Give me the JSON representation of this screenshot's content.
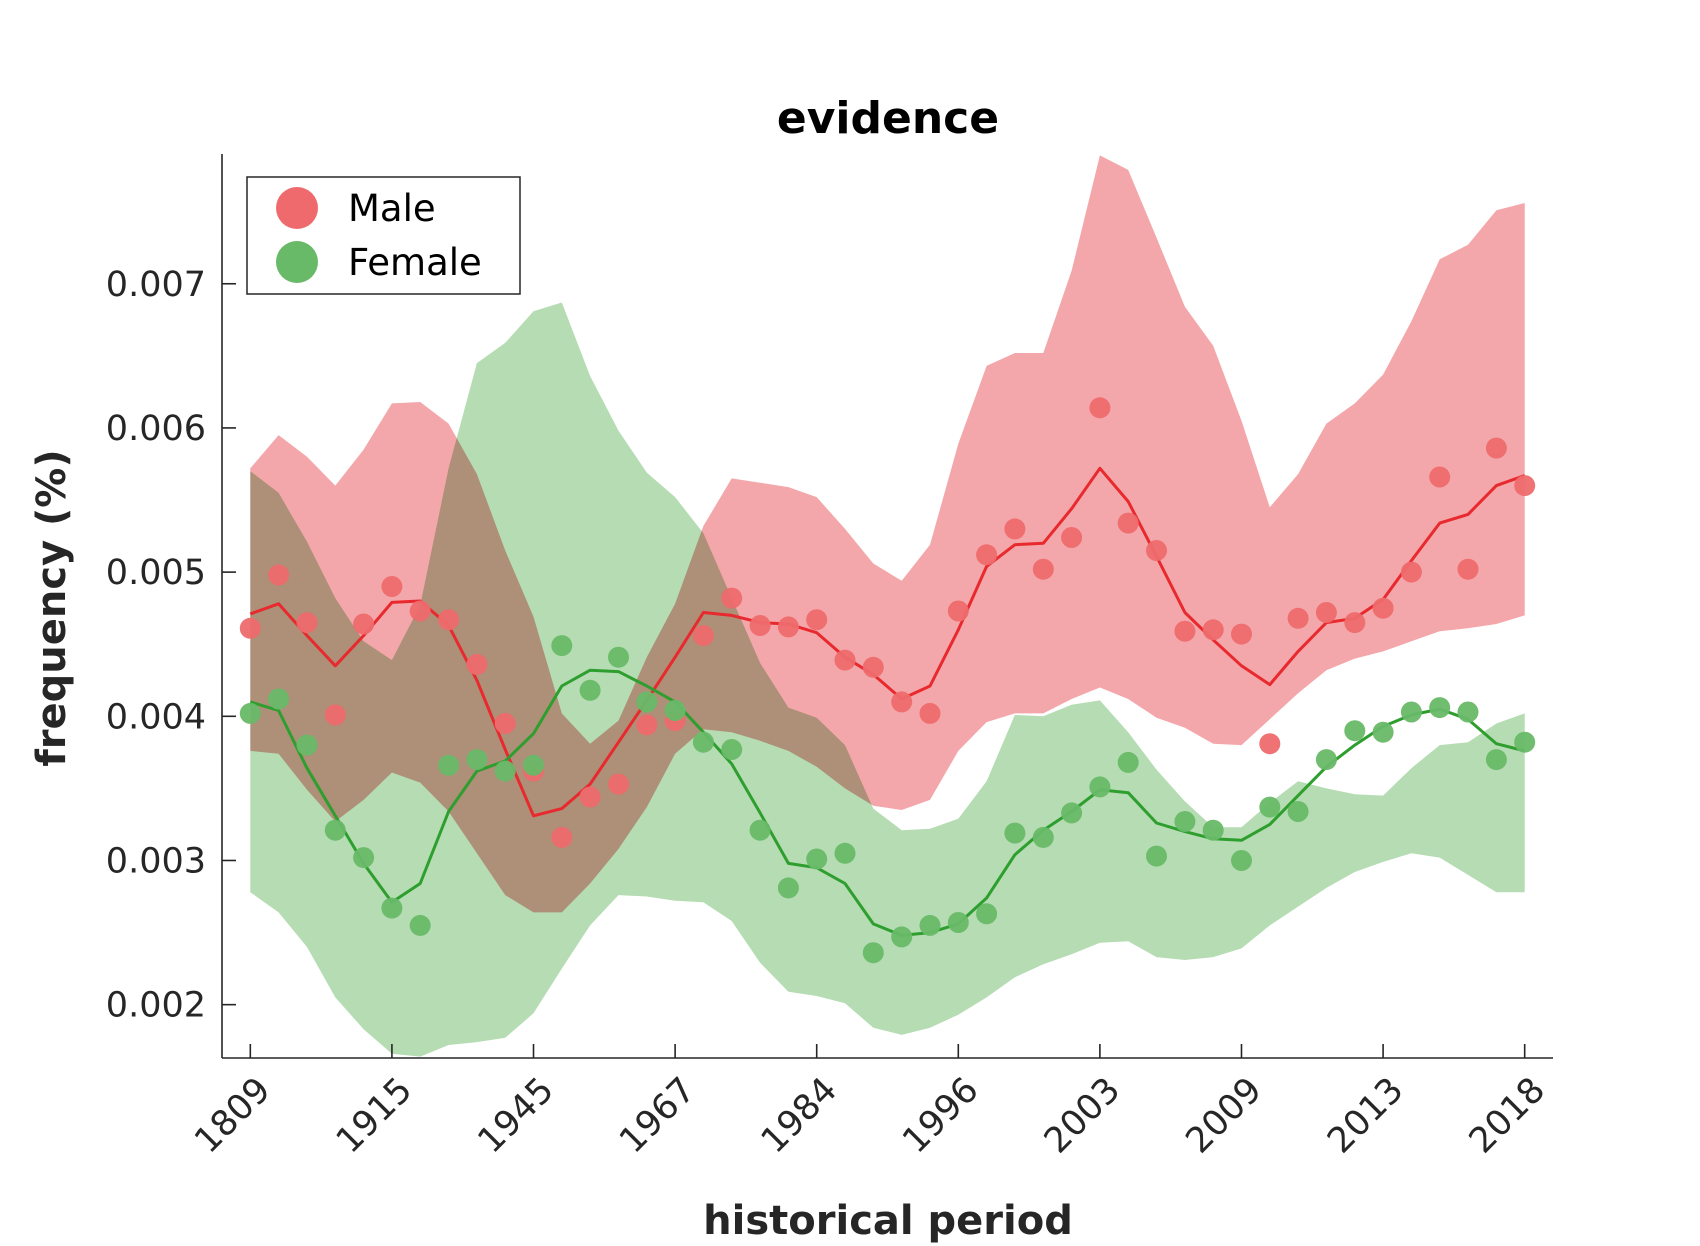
{
  "chart_data": {
    "type": "line",
    "title": "evidence",
    "xlabel": "historical period",
    "ylabel": "frequency (%)",
    "ylim": [
      0.00163,
      0.0079
    ],
    "yticks": [
      0.002,
      0.003,
      0.004,
      0.005,
      0.006,
      0.007
    ],
    "ytick_labels": [
      "0.002",
      "0.003",
      "0.004",
      "0.005",
      "0.006",
      "0.007"
    ],
    "xtick_labels": [
      "1809",
      "1915",
      "1945",
      "1967",
      "1984",
      "1996",
      "2003",
      "2009",
      "2013",
      "2018"
    ],
    "xtick_positions": [
      1,
      6,
      11,
      16,
      21,
      26,
      31,
      36,
      41,
      46
    ],
    "xlim": [
      0,
      47
    ],
    "grid": false,
    "legend_position": "top-left",
    "series": [
      {
        "name": "Male",
        "color": "#e8292e",
        "marker_color": "#ee6a6d",
        "band_color": "#f3a2a5",
        "points": [
          0.00461,
          0.00498,
          0.00465,
          0.00401,
          0.00464,
          0.0049,
          0.00473,
          0.00467,
          0.00436,
          0.00395,
          0.00362,
          0.00316,
          0.00344,
          0.00353,
          0.00394,
          0.00397,
          0.00456,
          0.00482,
          0.00463,
          0.00462,
          0.00467,
          0.00439,
          0.00434,
          0.0041,
          0.00402,
          0.00473,
          0.00512,
          0.0053,
          0.00502,
          0.00524,
          0.00614,
          0.00534,
          0.00515,
          0.00459,
          0.0046,
          0.00457,
          0.00381,
          0.00468,
          0.00472,
          0.00465,
          0.00475,
          0.005,
          0.00566,
          0.00502,
          0.00586,
          0.0056
        ],
        "trend": [
          0.00471,
          0.00478,
          0.00456,
          0.00435,
          0.00456,
          0.00479,
          0.0048,
          0.00463,
          0.00425,
          0.00377,
          0.00331,
          0.00336,
          0.00353,
          0.00382,
          0.00411,
          0.00441,
          0.00472,
          0.0047,
          0.00465,
          0.00464,
          0.00458,
          0.00441,
          0.00429,
          0.00412,
          0.00421,
          0.0046,
          0.00504,
          0.00519,
          0.0052,
          0.00544,
          0.00572,
          0.00549,
          0.00511,
          0.00472,
          0.00453,
          0.00435,
          0.00422,
          0.00445,
          0.00465,
          0.00468,
          0.00481,
          0.00508,
          0.00534,
          0.0054,
          0.0056,
          0.00567
        ],
        "upper": [
          0.00572,
          0.00595,
          0.0058,
          0.0056,
          0.00585,
          0.00617,
          0.00618,
          0.00603,
          0.00568,
          0.00515,
          0.00469,
          0.00402,
          0.00381,
          0.00397,
          0.00441,
          0.00478,
          0.00532,
          0.00565,
          0.00562,
          0.00559,
          0.00552,
          0.0053,
          0.00506,
          0.00494,
          0.00519,
          0.00589,
          0.00643,
          0.00652,
          0.00652,
          0.00709,
          0.00789,
          0.00779,
          0.00732,
          0.00684,
          0.00657,
          0.00605,
          0.00545,
          0.00568,
          0.00603,
          0.00617,
          0.00637,
          0.00674,
          0.00717,
          0.00727,
          0.00751,
          0.00756
        ],
        "lower": [
          0.00376,
          0.00374,
          0.00349,
          0.00327,
          0.00342,
          0.00361,
          0.00354,
          0.00334,
          0.00305,
          0.00276,
          0.00264,
          0.00264,
          0.00284,
          0.00308,
          0.00337,
          0.00374,
          0.00391,
          0.00389,
          0.00383,
          0.00376,
          0.00365,
          0.0035,
          0.00338,
          0.00335,
          0.00342,
          0.00376,
          0.00396,
          0.00402,
          0.00402,
          0.00412,
          0.0042,
          0.00412,
          0.00399,
          0.00392,
          0.00381,
          0.0038,
          0.00398,
          0.00416,
          0.00432,
          0.0044,
          0.00445,
          0.00452,
          0.00459,
          0.00461,
          0.00464,
          0.0047
        ]
      },
      {
        "name": "Female",
        "color": "#2e9e2e",
        "marker_color": "#68b968",
        "band_color": "#a8d6a4",
        "points": [
          0.00402,
          0.00412,
          0.0038,
          0.00321,
          0.00302,
          0.00267,
          0.00255,
          0.00366,
          0.0037,
          0.00362,
          0.00366,
          0.00449,
          0.00418,
          0.00441,
          0.0041,
          0.00404,
          0.00382,
          0.00377,
          0.00321,
          0.00281,
          0.00301,
          0.00305,
          0.00236,
          0.00247,
          0.00255,
          0.00257,
          0.00263,
          0.00319,
          0.00316,
          0.00333,
          0.00351,
          0.00368,
          0.00303,
          0.00327,
          0.00321,
          0.003,
          0.00337,
          0.00334,
          0.0037,
          0.0039,
          0.00389,
          0.00403,
          0.00406,
          0.00403,
          0.0037,
          0.00382
        ],
        "trend": [
          0.0041,
          0.00404,
          0.00364,
          0.00331,
          0.00298,
          0.00271,
          0.00284,
          0.00334,
          0.00362,
          0.00369,
          0.00388,
          0.00421,
          0.00432,
          0.00431,
          0.00421,
          0.0041,
          0.00389,
          0.00367,
          0.00333,
          0.00298,
          0.00295,
          0.00284,
          0.00256,
          0.00248,
          0.0025,
          0.00256,
          0.00274,
          0.00304,
          0.00321,
          0.00334,
          0.00349,
          0.00347,
          0.00326,
          0.0032,
          0.00315,
          0.00314,
          0.00325,
          0.00345,
          0.00365,
          0.0038,
          0.00393,
          0.00401,
          0.00405,
          0.00398,
          0.00381,
          0.00376
        ],
        "upper": [
          0.0057,
          0.00555,
          0.00521,
          0.00482,
          0.00452,
          0.00439,
          0.00477,
          0.00572,
          0.00645,
          0.00659,
          0.00681,
          0.00687,
          0.00636,
          0.00598,
          0.00569,
          0.00552,
          0.00527,
          0.00482,
          0.00437,
          0.00406,
          0.00399,
          0.0038,
          0.00336,
          0.00321,
          0.00322,
          0.00329,
          0.00355,
          0.00401,
          0.004,
          0.00408,
          0.00411,
          0.00389,
          0.00363,
          0.00341,
          0.00323,
          0.00323,
          0.0034,
          0.00355,
          0.0035,
          0.00346,
          0.00345,
          0.00364,
          0.0038,
          0.00382,
          0.00395,
          0.00402
        ],
        "lower": [
          0.00278,
          0.00264,
          0.0024,
          0.00205,
          0.00183,
          0.00166,
          0.00164,
          0.00172,
          0.00174,
          0.00177,
          0.00194,
          0.00225,
          0.00255,
          0.00276,
          0.00275,
          0.00272,
          0.00271,
          0.00258,
          0.00229,
          0.00209,
          0.00206,
          0.00201,
          0.00184,
          0.00179,
          0.00184,
          0.00193,
          0.00205,
          0.00219,
          0.00228,
          0.00235,
          0.00243,
          0.00244,
          0.00233,
          0.00231,
          0.00233,
          0.00239,
          0.00255,
          0.00268,
          0.00281,
          0.00292,
          0.00299,
          0.00305,
          0.00302,
          0.0029,
          0.00278,
          0.00278
        ]
      }
    ]
  }
}
